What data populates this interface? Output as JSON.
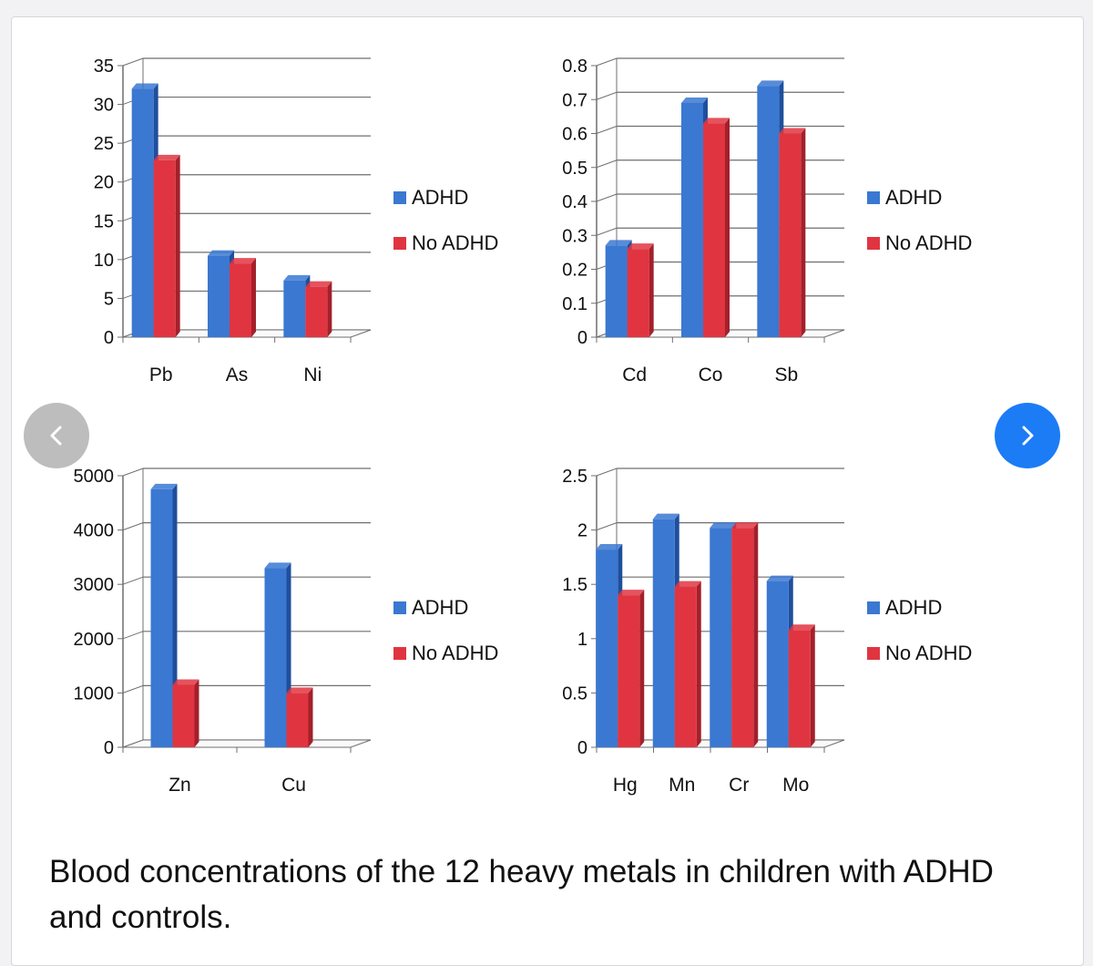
{
  "caption": "Blood concentrations of the 12 heavy metals in children with ADHD and controls.",
  "navigation": {
    "prev_icon": "chevron-left-icon",
    "next_icon": "chevron-right-icon"
  },
  "colors": {
    "adhd": "#3a78d2",
    "adhd_dark": "#1f4f9c",
    "no_adhd": "#e03541",
    "no_adhd_dark": "#a3202b",
    "grid": "#6f6f6f"
  },
  "chart_data": [
    {
      "type": "bar",
      "categories": [
        "Pb",
        "As",
        "Ni"
      ],
      "series": [
        {
          "name": "ADHD",
          "values": [
            32,
            10.5,
            7.3
          ]
        },
        {
          "name": "No ADHD",
          "values": [
            22.8,
            9.5,
            6.5
          ]
        }
      ],
      "ylim": [
        0,
        35
      ],
      "yticks": [
        "0",
        "5",
        "10",
        "15",
        "20",
        "25",
        "30",
        "35"
      ],
      "ytick_values": [
        0,
        5,
        10,
        15,
        20,
        25,
        30,
        35
      ],
      "legend": "right",
      "title": "",
      "xlabel": "",
      "ylabel": ""
    },
    {
      "type": "bar",
      "categories": [
        "Cd",
        "Co",
        "Sb"
      ],
      "series": [
        {
          "name": "ADHD",
          "values": [
            0.27,
            0.69,
            0.74
          ]
        },
        {
          "name": "No ADHD",
          "values": [
            0.26,
            0.63,
            0.6
          ]
        }
      ],
      "ylim": [
        0,
        0.8
      ],
      "yticks": [
        "0",
        "0.1",
        "0.2",
        "0.3",
        "0.4",
        "0.5",
        "0.6",
        "0.7",
        "0.8"
      ],
      "ytick_values": [
        0,
        0.1,
        0.2,
        0.3,
        0.4,
        0.5,
        0.6,
        0.7,
        0.8
      ],
      "legend": "right",
      "title": "",
      "xlabel": "",
      "ylabel": ""
    },
    {
      "type": "bar",
      "categories": [
        "Zn",
        "Cu"
      ],
      "series": [
        {
          "name": "ADHD",
          "values": [
            4750,
            3300
          ]
        },
        {
          "name": "No ADHD",
          "values": [
            1150,
            1000
          ]
        }
      ],
      "ylim": [
        0,
        5000
      ],
      "yticks": [
        "0",
        "1000",
        "2000",
        "3000",
        "4000",
        "5000"
      ],
      "ytick_values": [
        0,
        1000,
        2000,
        3000,
        4000,
        5000
      ],
      "legend": "right",
      "title": "",
      "xlabel": "",
      "ylabel": ""
    },
    {
      "type": "bar",
      "categories": [
        "Hg",
        "Mn",
        "Cr",
        "Mo"
      ],
      "series": [
        {
          "name": "ADHD",
          "values": [
            1.82,
            2.1,
            2.02,
            1.53
          ]
        },
        {
          "name": "No ADHD",
          "values": [
            1.4,
            1.48,
            2.02,
            1.08
          ]
        }
      ],
      "ylim": [
        0,
        2.5
      ],
      "yticks": [
        "0",
        "0.5",
        "1",
        "1.5",
        "2",
        "2.5"
      ],
      "ytick_values": [
        0,
        0.5,
        1,
        1.5,
        2,
        2.5
      ],
      "legend": "right",
      "title": "",
      "xlabel": "",
      "ylabel": ""
    }
  ]
}
